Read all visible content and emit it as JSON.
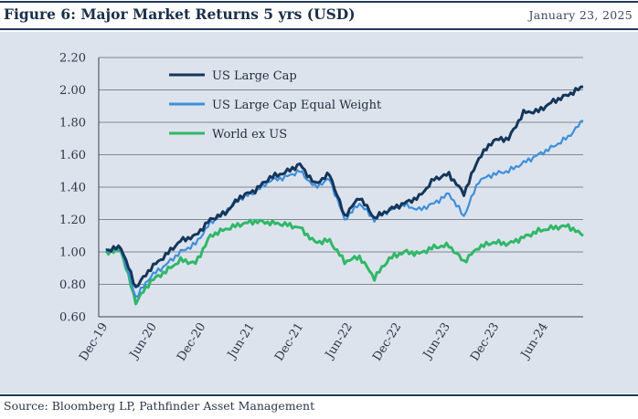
{
  "header": {
    "title": "Figure 6: Major Market Returns 5 yrs (USD)",
    "date": "January 23, 2025"
  },
  "footer": {
    "source": "Source: Bloomberg LP, Pathfinder Asset Management"
  },
  "colors": {
    "panel_bg": "#dde3ed",
    "rule": "#1f3a5a",
    "us_large_cap": "#14365a",
    "us_large_cap_equal_weight": "#3d8fdb",
    "world_ex_us": "#2fb868"
  },
  "chart_data": {
    "type": "line",
    "title": "Figure 6: Major Market Returns 5 yrs (USD)",
    "xlabel": "",
    "ylabel": "",
    "ylim": [
      0.6,
      2.2
    ],
    "yticks": [
      "2.20",
      "2.00",
      "1.80",
      "1.60",
      "1.40",
      "1.20",
      "1.00",
      "0.80",
      "0.60"
    ],
    "xticks": [
      "Dec-19",
      "Jun-20",
      "Dec-20",
      "Jun-21",
      "Dec-21",
      "Jun-22",
      "Dec-22",
      "Jun-23",
      "Dec-23",
      "Jun-24"
    ],
    "grid": "horizontal",
    "legend": "top-left",
    "x": [
      "Dec-19",
      "Feb-20",
      "Mar-20",
      "Apr-20",
      "Jun-20",
      "Aug-20",
      "Oct-20",
      "Dec-20",
      "Feb-21",
      "Apr-21",
      "Jun-21",
      "Aug-21",
      "Oct-21",
      "Dec-21",
      "Feb-22",
      "Mar-22",
      "Jun-22",
      "Aug-22",
      "Oct-22",
      "Dec-22",
      "Feb-23",
      "Apr-23",
      "Jun-23",
      "Aug-23",
      "Oct-23",
      "Dec-23",
      "Feb-24",
      "Apr-24",
      "Jun-24",
      "Aug-24",
      "Oct-24",
      "Dec-24",
      "Jan-25"
    ],
    "series": [
      {
        "name": "US Large Cap",
        "values": [
          1.01,
          1.03,
          0.78,
          0.9,
          0.98,
          1.07,
          1.1,
          1.2,
          1.24,
          1.34,
          1.38,
          1.46,
          1.49,
          1.54,
          1.42,
          1.48,
          1.22,
          1.34,
          1.21,
          1.26,
          1.3,
          1.34,
          1.45,
          1.48,
          1.36,
          1.58,
          1.69,
          1.7,
          1.86,
          1.87,
          1.93,
          1.97,
          2.02
        ]
      },
      {
        "name": "US Large Cap Equal Weight",
        "values": [
          1.01,
          1.02,
          0.72,
          0.85,
          0.92,
          1.0,
          1.05,
          1.18,
          1.25,
          1.33,
          1.37,
          1.44,
          1.46,
          1.5,
          1.4,
          1.45,
          1.2,
          1.3,
          1.2,
          1.26,
          1.29,
          1.26,
          1.3,
          1.36,
          1.22,
          1.44,
          1.48,
          1.5,
          1.55,
          1.6,
          1.65,
          1.71,
          1.81
        ]
      },
      {
        "name": "World ex US",
        "values": [
          1.0,
          1.01,
          0.69,
          0.82,
          0.88,
          0.95,
          0.93,
          1.1,
          1.14,
          1.17,
          1.19,
          1.18,
          1.17,
          1.15,
          1.06,
          1.07,
          0.94,
          0.97,
          0.84,
          0.96,
          1.0,
          0.99,
          1.03,
          1.04,
          0.94,
          1.03,
          1.06,
          1.05,
          1.09,
          1.13,
          1.15,
          1.16,
          1.1
        ]
      }
    ]
  }
}
